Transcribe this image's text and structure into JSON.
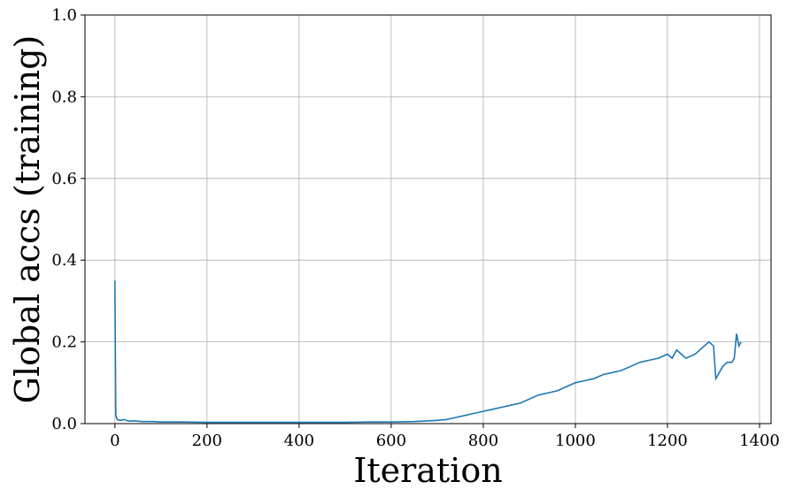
{
  "chart_data": {
    "type": "line",
    "title": "",
    "xlabel": "Iteration",
    "ylabel": "Global accs (training)",
    "xlim": [
      -65,
      1425
    ],
    "ylim": [
      0.0,
      1.0
    ],
    "x_ticks": [
      0,
      200,
      400,
      600,
      800,
      1000,
      1200,
      1400
    ],
    "y_ticks": [
      0.0,
      0.2,
      0.4,
      0.6,
      0.8,
      1.0
    ],
    "x_tick_labels": [
      "0",
      "200",
      "400",
      "600",
      "800",
      "1000",
      "1200",
      "1400"
    ],
    "y_tick_labels": [
      "0.0",
      "0.2",
      "0.4",
      "0.6",
      "0.8",
      "1.0"
    ],
    "grid": true,
    "line_color": "#1f77b4",
    "series": [
      {
        "x": [
          0,
          2,
          5,
          10,
          20,
          30,
          40,
          60,
          80,
          100,
          150,
          200,
          250,
          300,
          350,
          400,
          450,
          500,
          550,
          600,
          650,
          700,
          720,
          740,
          760,
          780,
          800,
          820,
          840,
          860,
          880,
          900,
          920,
          940,
          960,
          980,
          1000,
          1020,
          1040,
          1060,
          1080,
          1100,
          1120,
          1140,
          1160,
          1180,
          1200,
          1210,
          1220,
          1230,
          1240,
          1260,
          1280,
          1290,
          1300,
          1305,
          1310,
          1320,
          1330,
          1340,
          1345,
          1350,
          1355,
          1360
        ],
        "y": [
          0.35,
          0.02,
          0.01,
          0.008,
          0.01,
          0.006,
          0.007,
          0.005,
          0.005,
          0.004,
          0.004,
          0.003,
          0.003,
          0.003,
          0.003,
          0.003,
          0.003,
          0.003,
          0.004,
          0.004,
          0.005,
          0.008,
          0.01,
          0.015,
          0.02,
          0.025,
          0.03,
          0.035,
          0.04,
          0.045,
          0.05,
          0.06,
          0.07,
          0.075,
          0.08,
          0.09,
          0.1,
          0.105,
          0.11,
          0.12,
          0.125,
          0.13,
          0.14,
          0.15,
          0.155,
          0.16,
          0.17,
          0.16,
          0.18,
          0.17,
          0.16,
          0.17,
          0.19,
          0.2,
          0.19,
          0.11,
          0.12,
          0.14,
          0.15,
          0.15,
          0.16,
          0.22,
          0.19,
          0.2
        ]
      }
    ]
  }
}
